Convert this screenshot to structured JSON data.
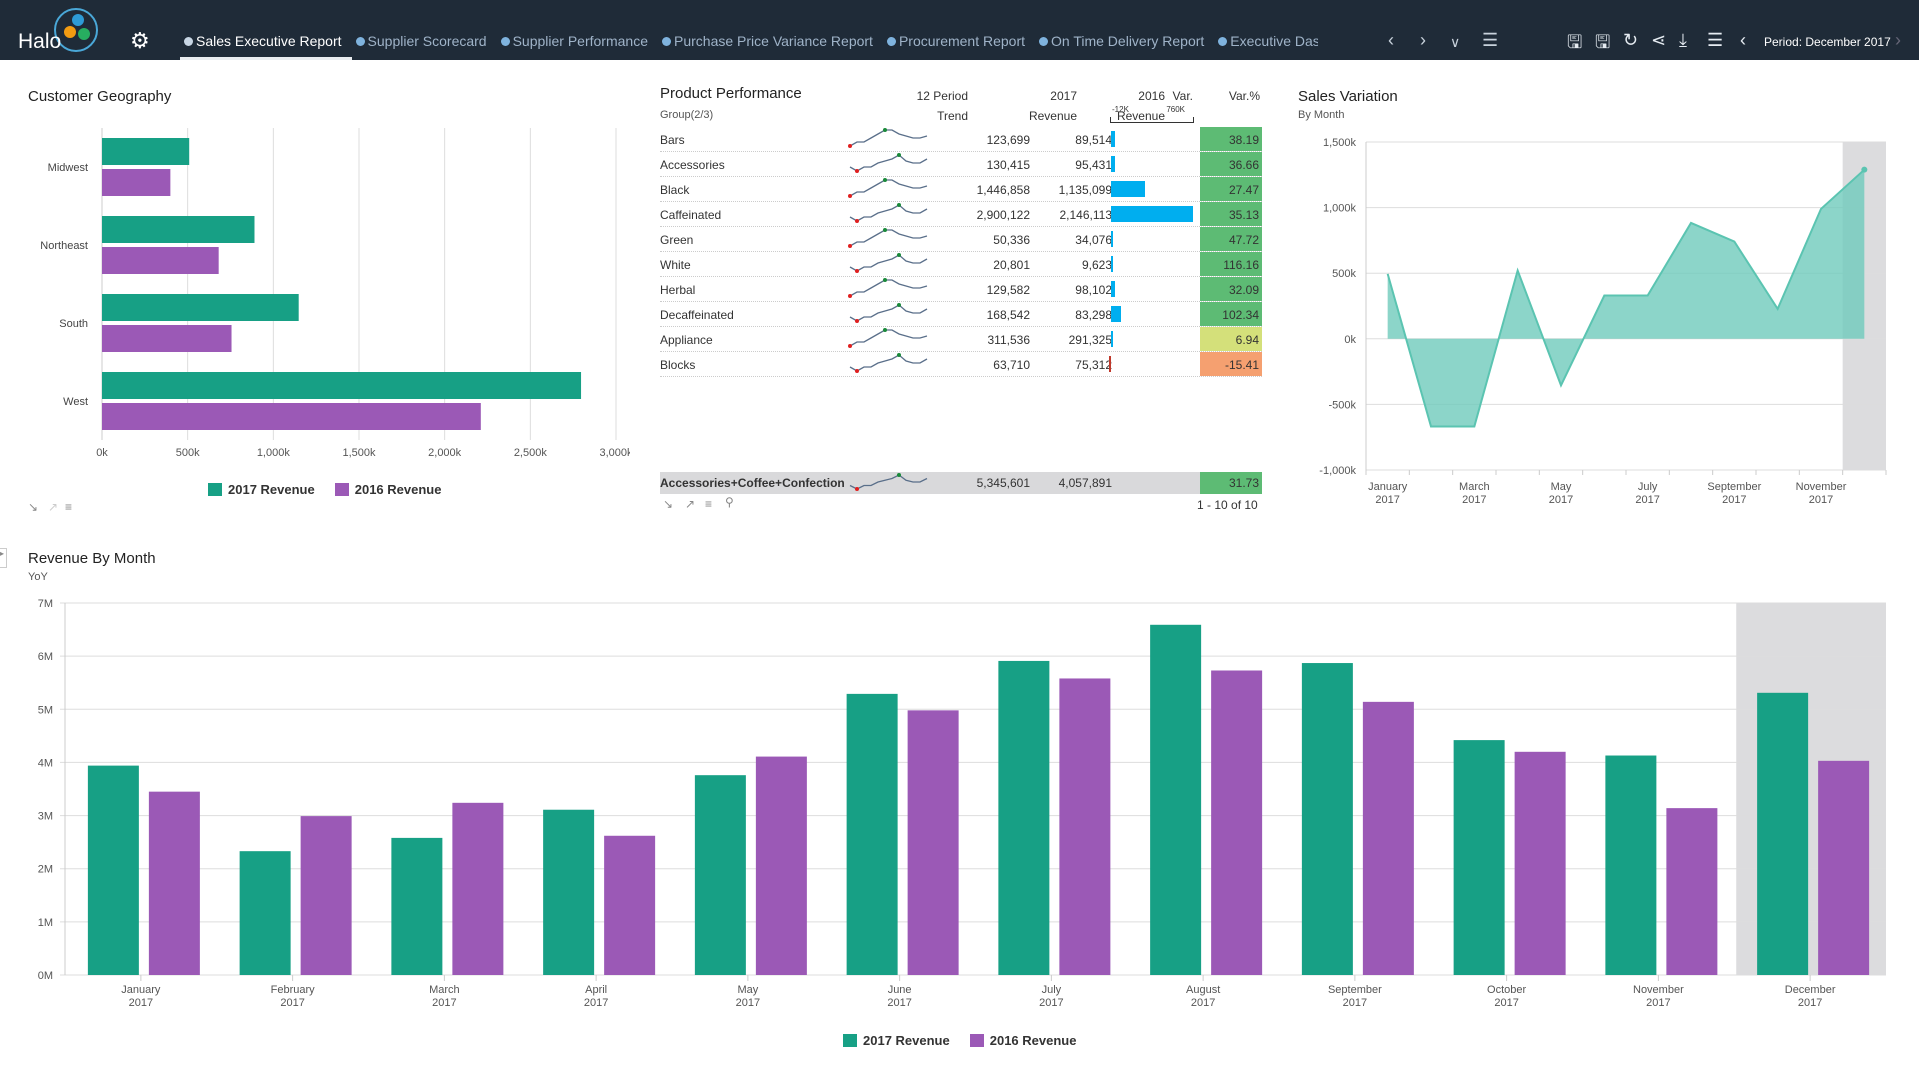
{
  "header": {
    "logo_text": "Halo",
    "tabs": [
      {
        "label": "Sales Executive Report",
        "active": true
      },
      {
        "label": "Supplier Scorecard"
      },
      {
        "label": "Supplier Performance"
      },
      {
        "label": "Purchase Price Variance Report"
      },
      {
        "label": "Procurement Report"
      },
      {
        "label": "On Time Delivery Report"
      },
      {
        "label": "Executive Dash"
      }
    ],
    "period": "Period: December 2017",
    "icons": [
      "settings-icon",
      "chevron-left-icon",
      "chevron-right-icon",
      "chevron-down-icon",
      "menu-icon",
      "save-icon",
      "save-as-icon",
      "refresh-icon",
      "share-icon",
      "download-icon",
      "list-icon",
      "period-prev-icon",
      "period-next-icon"
    ]
  },
  "colors": {
    "header_bg": "#1f2b38",
    "rev2017": "#17a085",
    "rev2016": "#9b59b6",
    "variation": "#6fcabb",
    "var_bar": "#00aeef",
    "var_neg": "#c0392b",
    "good": "#5dbb74",
    "mid": "#d4e07a",
    "bad": "#f5a070",
    "highlight": "#dcdcde"
  },
  "geography": {
    "title": "Customer Geography",
    "chart_data": {
      "type": "bar",
      "orientation": "horizontal",
      "categories": [
        "Midwest",
        "Northeast",
        "South",
        "West"
      ],
      "series": [
        {
          "name": "2017 Revenue",
          "values": [
            509000,
            890000,
            1148000,
            2796000
          ]
        },
        {
          "name": "2016 Revenue",
          "values": [
            399000,
            681000,
            756000,
            2211000
          ]
        }
      ],
      "xlim": [
        0,
        3000000
      ],
      "ticks": [
        "0k",
        "500k",
        "1,000k",
        "1,500k",
        "2,000k",
        "2,500k",
        "3,000k"
      ],
      "grid": true,
      "legend": "bottom"
    }
  },
  "product": {
    "title": "Product Performance",
    "group": "Group(2/3)",
    "headers": {
      "trend1": "12 Period",
      "trend2": "Trend",
      "r17a": "2017",
      "r17b": "Revenue",
      "r16a": "2016",
      "r16b": "Revenue",
      "var": "Var.",
      "var_min": "-12K",
      "var_max": "760K",
      "varp": "Var.%"
    },
    "var_range": [
      -12000,
      760000
    ],
    "rows": [
      {
        "name": "Bars",
        "r17": "123,699",
        "r16": "89,514",
        "var": 34185,
        "varp": "38.19",
        "status": "good"
      },
      {
        "name": "Accessories",
        "r17": "130,415",
        "r16": "95,431",
        "var": 34984,
        "varp": "36.66",
        "status": "good"
      },
      {
        "name": "Black",
        "r17": "1,446,858",
        "r16": "1,135,099",
        "var": 311759,
        "varp": "27.47",
        "status": "good"
      },
      {
        "name": "Caffeinated",
        "r17": "2,900,122",
        "r16": "2,146,113",
        "var": 754009,
        "varp": "35.13",
        "status": "good"
      },
      {
        "name": "Green",
        "r17": "50,336",
        "r16": "34,076",
        "var": 16260,
        "varp": "47.72",
        "status": "good"
      },
      {
        "name": "White",
        "r17": "20,801",
        "r16": "9,623",
        "var": 11178,
        "varp": "116.16",
        "status": "good"
      },
      {
        "name": "Herbal",
        "r17": "129,582",
        "r16": "98,102",
        "var": 31480,
        "varp": "32.09",
        "status": "good"
      },
      {
        "name": "Decaffeinated",
        "r17": "168,542",
        "r16": "83,298",
        "var": 85244,
        "varp": "102.34",
        "status": "good"
      },
      {
        "name": "Appliance",
        "r17": "311,536",
        "r16": "291,325",
        "var": 20211,
        "varp": "6.94",
        "status": "mid"
      },
      {
        "name": "Blocks",
        "r17": "63,710",
        "r16": "75,312",
        "var": -11602,
        "varp": "-15.41",
        "status": "bad"
      }
    ],
    "total": {
      "name": "Accessories+Coffee+Confection:",
      "r17": "5,345,601",
      "r16": "4,057,891",
      "varp": "31.73",
      "status": "good"
    },
    "pager": "1 - 10 of 10"
  },
  "variation": {
    "title": "Sales Variation",
    "subtitle": "By Month",
    "chart_data": {
      "type": "area",
      "x": [
        "January 2017",
        "February 2017",
        "March 2017",
        "April 2017",
        "May 2017",
        "June 2017",
        "July 2017",
        "August 2017",
        "September 2017",
        "October 2017",
        "November 2017",
        "December 2017"
      ],
      "values": [
        495000,
        -668000,
        -668000,
        520000,
        -355000,
        330000,
        330000,
        883000,
        741000,
        228000,
        990000,
        1289000
      ],
      "ylim": [
        -1000000,
        1500000
      ],
      "yticks": [
        "1,500k",
        "1,000k",
        "500k",
        "0k",
        "-500k",
        "-1,000k"
      ],
      "xlabels": [
        [
          "January",
          "2017"
        ],
        [
          "March",
          "2017"
        ],
        [
          "May",
          "2017"
        ],
        [
          "July",
          "2017"
        ],
        [
          "September",
          "2017"
        ],
        [
          "November",
          "2017"
        ]
      ],
      "highlight": "December 2017",
      "grid": true
    }
  },
  "monthly": {
    "title": "Revenue By Month",
    "subtitle": "YoY",
    "chart_data": {
      "type": "bar",
      "categories": [
        [
          "January",
          "2017"
        ],
        [
          "February",
          "2017"
        ],
        [
          "March",
          "2017"
        ],
        [
          "April",
          "2017"
        ],
        [
          "May",
          "2017"
        ],
        [
          "June",
          "2017"
        ],
        [
          "July",
          "2017"
        ],
        [
          "August",
          "2017"
        ],
        [
          "September",
          "2017"
        ],
        [
          "October",
          "2017"
        ],
        [
          "November",
          "2017"
        ],
        [
          "December",
          "2017"
        ]
      ],
      "series": [
        {
          "name": "2017 Revenue",
          "values": [
            3.94,
            2.33,
            2.58,
            3.11,
            3.76,
            5.29,
            5.91,
            6.59,
            5.87,
            4.42,
            4.13,
            5.31
          ]
        },
        {
          "name": "2016 Revenue",
          "values": [
            3.45,
            2.99,
            3.24,
            2.62,
            4.11,
            4.98,
            5.58,
            5.73,
            5.14,
            4.2,
            3.14,
            4.03
          ]
        }
      ],
      "unit": "M",
      "ylim": [
        0,
        7
      ],
      "yticks": [
        "0M",
        "1M",
        "2M",
        "3M",
        "4M",
        "5M",
        "6M",
        "7M"
      ],
      "highlight": "December 2017",
      "grid": true,
      "legend": "bottom"
    }
  }
}
